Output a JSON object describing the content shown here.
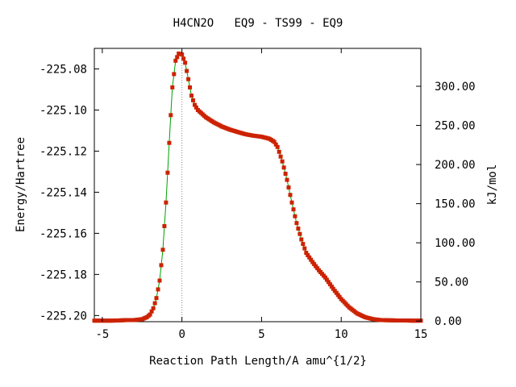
{
  "chart_data": {
    "type": "line",
    "title": "H4CN2O   EQ9 - TS99 - EQ9",
    "xlabel": "Reaction Path Length/A amu^{1/2}",
    "ylabel": "Energy/Hartree",
    "y2label": "kJ/mol",
    "xlim": [
      -5.5,
      15
    ],
    "ylim": [
      -225.203,
      -225.07
    ],
    "y2lim": [
      -0.8,
      348.4
    ],
    "x_ticks": [
      -5,
      0,
      5,
      10,
      15
    ],
    "x_tick_labels": [
      "-5",
      "0",
      "5",
      "10",
      "15"
    ],
    "y_ticks": [
      -225.08,
      -225.1,
      -225.12,
      -225.14,
      -225.16,
      -225.18,
      -225.2
    ],
    "y_tick_labels": [
      "-225.08",
      "-225.10",
      "-225.12",
      "-225.14",
      "-225.16",
      "-225.18",
      "-225.20"
    ],
    "y2_ticks": [
      0,
      50,
      100,
      150,
      200,
      250,
      300
    ],
    "y2_tick_labels": [
      "0.00",
      "50.00",
      "100.00",
      "150.00",
      "200.00",
      "250.00",
      "300.00"
    ],
    "ts_marker_x": 0,
    "grid": false,
    "legend": "none",
    "colors": {
      "line": "#00a000",
      "points": "#cc2200",
      "ts_marker": "#888888"
    },
    "series": [
      {
        "x": [
          -5.5,
          -5.0,
          -4.5,
          -4.0,
          -3.5,
          -3.0,
          -2.5,
          -2.2,
          -2.0,
          -1.8,
          -1.6,
          -1.4,
          -1.2,
          -1.0,
          -0.8,
          -0.6,
          -0.4,
          -0.2,
          0.0,
          0.2,
          0.4,
          0.6,
          0.8,
          1.0,
          1.5,
          2.0,
          2.5,
          3.0,
          3.5,
          4.0,
          4.5,
          5.0,
          5.5,
          5.8,
          6.0,
          6.3,
          6.6,
          6.9,
          7.2,
          7.5,
          7.8,
          8.2,
          8.6,
          9.0,
          9.5,
          10.0,
          10.5,
          11.0,
          11.5,
          12.0,
          12.5,
          13.0,
          13.5,
          14.0,
          14.5,
          15.0
        ],
        "y": [
          -225.2025,
          -225.2025,
          -225.2025,
          -225.2024,
          -225.2022,
          -225.2022,
          -225.2018,
          -225.2008,
          -225.1995,
          -225.1965,
          -225.1915,
          -225.183,
          -225.168,
          -225.145,
          -225.116,
          -225.089,
          -225.076,
          -225.0725,
          -225.073,
          -225.077,
          -225.085,
          -225.093,
          -225.0975,
          -225.1,
          -225.1035,
          -225.106,
          -225.108,
          -225.1095,
          -225.1107,
          -225.1118,
          -225.1125,
          -225.113,
          -225.114,
          -225.1155,
          -225.118,
          -225.125,
          -225.134,
          -225.145,
          -225.155,
          -225.163,
          -225.1695,
          -225.174,
          -225.178,
          -225.1815,
          -225.187,
          -225.192,
          -225.196,
          -225.199,
          -225.2008,
          -225.2018,
          -225.2022,
          -225.2023,
          -225.2024,
          -225.2024,
          -225.2025,
          -225.2025
        ]
      }
    ]
  }
}
